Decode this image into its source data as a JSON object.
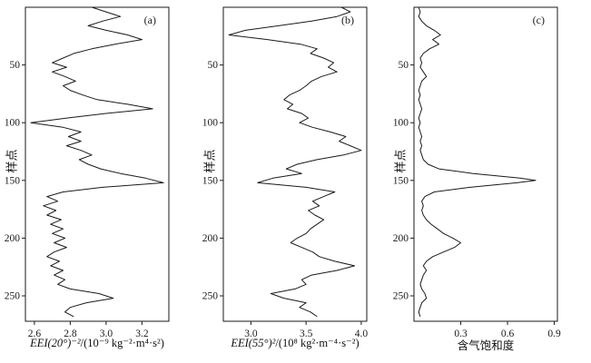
{
  "figure": {
    "background": "#ffffff",
    "line_color": "#1a1a1a",
    "axis_color": "#1a1a1a"
  },
  "chart_data": [
    {
      "type": "line",
      "panel_letter": "(a)",
      "ylabel": "样点",
      "xlabel_italic": "EEI(20°)⁻²",
      "xlabel_rest": "/(10⁻⁹ kg⁻²·m⁴·s²)",
      "xlim": [
        2.55,
        3.35
      ],
      "xticks": [
        "2.6",
        "2.8",
        "3.0",
        "3.2"
      ],
      "ylim": [
        0,
        272
      ],
      "yticks": [
        50,
        100,
        150,
        200,
        250
      ],
      "y_inverted": true,
      "grid": false,
      "points": [
        [
          0,
          2.92
        ],
        [
          4,
          3.0
        ],
        [
          8,
          3.08
        ],
        [
          12,
          2.98
        ],
        [
          16,
          2.9
        ],
        [
          20,
          3.0
        ],
        [
          24,
          3.12
        ],
        [
          28,
          3.2
        ],
        [
          32,
          3.05
        ],
        [
          36,
          2.92
        ],
        [
          40,
          2.82
        ],
        [
          44,
          2.76
        ],
        [
          48,
          2.7
        ],
        [
          52,
          2.78
        ],
        [
          56,
          2.7
        ],
        [
          60,
          2.77
        ],
        [
          64,
          2.83
        ],
        [
          68,
          2.76
        ],
        [
          72,
          2.8
        ],
        [
          76,
          2.87
        ],
        [
          80,
          2.95
        ],
        [
          84,
          3.12
        ],
        [
          88,
          3.26
        ],
        [
          92,
          3.0
        ],
        [
          96,
          2.78
        ],
        [
          100,
          2.58
        ],
        [
          104,
          2.76
        ],
        [
          108,
          2.86
        ],
        [
          112,
          2.79
        ],
        [
          116,
          2.86
        ],
        [
          120,
          2.78
        ],
        [
          124,
          2.86
        ],
        [
          128,
          2.92
        ],
        [
          132,
          2.85
        ],
        [
          136,
          2.9
        ],
        [
          140,
          2.97
        ],
        [
          144,
          3.08
        ],
        [
          148,
          3.22
        ],
        [
          152,
          3.32
        ],
        [
          156,
          2.98
        ],
        [
          160,
          2.76
        ],
        [
          164,
          2.67
        ],
        [
          168,
          2.73
        ],
        [
          172,
          2.65
        ],
        [
          176,
          2.72
        ],
        [
          180,
          2.67
        ],
        [
          184,
          2.75
        ],
        [
          188,
          2.69
        ],
        [
          192,
          2.76
        ],
        [
          196,
          2.7
        ],
        [
          200,
          2.77
        ],
        [
          204,
          2.71
        ],
        [
          208,
          2.78
        ],
        [
          212,
          2.71
        ],
        [
          216,
          2.67
        ],
        [
          220,
          2.74
        ],
        [
          224,
          2.69
        ],
        [
          228,
          2.76
        ],
        [
          232,
          2.71
        ],
        [
          236,
          2.77
        ],
        [
          240,
          2.73
        ],
        [
          244,
          2.8
        ],
        [
          248,
          2.96
        ],
        [
          252,
          3.04
        ],
        [
          256,
          2.89
        ],
        [
          260,
          2.8
        ],
        [
          264,
          2.77
        ],
        [
          268,
          2.82
        ]
      ]
    },
    {
      "type": "line",
      "panel_letter": "(b)",
      "ylabel": "样点",
      "xlabel_italic": "EEI(55°)²",
      "xlabel_rest": "/(10⁸ kg²·m⁻⁴·s⁻²)",
      "xlim": [
        2.75,
        4.05
      ],
      "xticks": [
        "3.0",
        "3.5",
        "4.0"
      ],
      "ylim": [
        0,
        272
      ],
      "yticks": [
        50,
        100,
        150,
        200,
        250
      ],
      "y_inverted": true,
      "grid": false,
      "points": [
        [
          0,
          3.82
        ],
        [
          4,
          3.9
        ],
        [
          8,
          3.78
        ],
        [
          12,
          3.55
        ],
        [
          16,
          3.25
        ],
        [
          20,
          2.95
        ],
        [
          24,
          2.8
        ],
        [
          28,
          3.15
        ],
        [
          32,
          3.45
        ],
        [
          36,
          3.6
        ],
        [
          40,
          3.54
        ],
        [
          44,
          3.66
        ],
        [
          48,
          3.75
        ],
        [
          52,
          3.7
        ],
        [
          56,
          3.78
        ],
        [
          60,
          3.64
        ],
        [
          64,
          3.55
        ],
        [
          68,
          3.5
        ],
        [
          72,
          3.44
        ],
        [
          76,
          3.35
        ],
        [
          80,
          3.3
        ],
        [
          84,
          3.38
        ],
        [
          88,
          3.33
        ],
        [
          92,
          3.46
        ],
        [
          96,
          3.52
        ],
        [
          100,
          3.44
        ],
        [
          104,
          3.56
        ],
        [
          108,
          3.72
        ],
        [
          112,
          3.86
        ],
        [
          116,
          3.8
        ],
        [
          120,
          3.9
        ],
        [
          124,
          4.0
        ],
        [
          128,
          3.84
        ],
        [
          132,
          3.6
        ],
        [
          136,
          3.42
        ],
        [
          140,
          3.32
        ],
        [
          144,
          3.46
        ],
        [
          148,
          3.2
        ],
        [
          152,
          3.06
        ],
        [
          156,
          3.5
        ],
        [
          160,
          3.76
        ],
        [
          164,
          3.66
        ],
        [
          168,
          3.56
        ],
        [
          172,
          3.62
        ],
        [
          176,
          3.52
        ],
        [
          180,
          3.58
        ],
        [
          184,
          3.66
        ],
        [
          188,
          3.6
        ],
        [
          192,
          3.54
        ],
        [
          196,
          3.5
        ],
        [
          200,
          3.42
        ],
        [
          204,
          3.36
        ],
        [
          208,
          3.46
        ],
        [
          212,
          3.56
        ],
        [
          216,
          3.62
        ],
        [
          220,
          3.76
        ],
        [
          224,
          3.94
        ],
        [
          228,
          3.78
        ],
        [
          232,
          3.55
        ],
        [
          236,
          3.46
        ],
        [
          240,
          3.5
        ],
        [
          244,
          3.4
        ],
        [
          248,
          3.18
        ],
        [
          252,
          3.3
        ],
        [
          256,
          3.5
        ],
        [
          260,
          3.44
        ],
        [
          264,
          3.54
        ],
        [
          268,
          3.6
        ]
      ]
    },
    {
      "type": "line",
      "panel_letter": "(c)",
      "ylabel": "样点",
      "xlabel_italic": "",
      "xlabel_rest": "含气饱和度",
      "xlim": [
        0,
        0.92
      ],
      "xticks": [
        "0.3",
        "0.6",
        "0.9"
      ],
      "ylim": [
        0,
        272
      ],
      "yticks": [
        50,
        100,
        150,
        200,
        250
      ],
      "y_inverted": true,
      "grid": false,
      "points": [
        [
          0,
          0.03
        ],
        [
          4,
          0.04
        ],
        [
          8,
          0.03
        ],
        [
          12,
          0.05
        ],
        [
          16,
          0.08
        ],
        [
          20,
          0.13
        ],
        [
          24,
          0.17
        ],
        [
          28,
          0.12
        ],
        [
          32,
          0.16
        ],
        [
          36,
          0.1
        ],
        [
          40,
          0.06
        ],
        [
          44,
          0.04
        ],
        [
          48,
          0.05
        ],
        [
          52,
          0.04
        ],
        [
          56,
          0.06
        ],
        [
          60,
          0.08
        ],
        [
          64,
          0.05
        ],
        [
          68,
          0.04
        ],
        [
          72,
          0.03
        ],
        [
          76,
          0.04
        ],
        [
          80,
          0.03
        ],
        [
          84,
          0.04
        ],
        [
          88,
          0.05
        ],
        [
          92,
          0.04
        ],
        [
          96,
          0.03
        ],
        [
          100,
          0.04
        ],
        [
          104,
          0.03
        ],
        [
          108,
          0.04
        ],
        [
          112,
          0.05
        ],
        [
          116,
          0.04
        ],
        [
          120,
          0.05
        ],
        [
          124,
          0.04
        ],
        [
          128,
          0.05
        ],
        [
          132,
          0.06
        ],
        [
          136,
          0.09
        ],
        [
          140,
          0.16
        ],
        [
          144,
          0.38
        ],
        [
          148,
          0.68
        ],
        [
          150,
          0.78
        ],
        [
          152,
          0.66
        ],
        [
          156,
          0.36
        ],
        [
          160,
          0.13
        ],
        [
          164,
          0.07
        ],
        [
          168,
          0.05
        ],
        [
          172,
          0.06
        ],
        [
          176,
          0.05
        ],
        [
          180,
          0.06
        ],
        [
          184,
          0.08
        ],
        [
          188,
          0.11
        ],
        [
          192,
          0.15
        ],
        [
          196,
          0.19
        ],
        [
          200,
          0.25
        ],
        [
          204,
          0.3
        ],
        [
          208,
          0.26
        ],
        [
          212,
          0.19
        ],
        [
          216,
          0.12
        ],
        [
          220,
          0.08
        ],
        [
          224,
          0.06
        ],
        [
          228,
          0.08
        ],
        [
          232,
          0.06
        ],
        [
          236,
          0.05
        ],
        [
          240,
          0.04
        ],
        [
          244,
          0.05
        ],
        [
          248,
          0.07
        ],
        [
          252,
          0.08
        ],
        [
          256,
          0.05
        ],
        [
          260,
          0.04
        ],
        [
          264,
          0.03
        ],
        [
          268,
          0.04
        ]
      ]
    }
  ]
}
